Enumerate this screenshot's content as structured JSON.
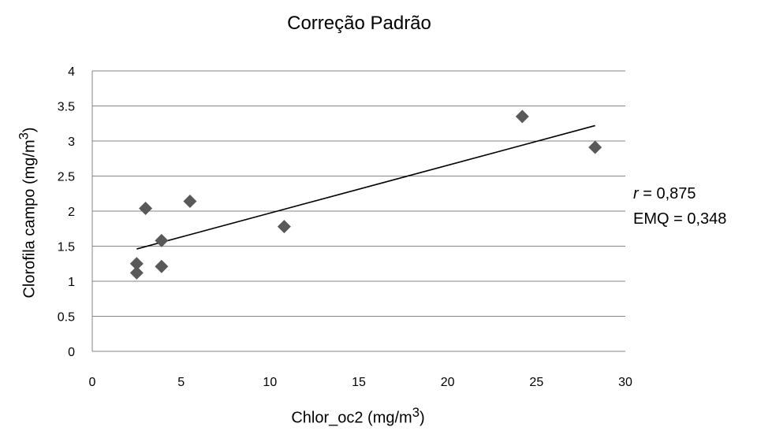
{
  "chart_data": {
    "type": "scatter",
    "title": "Correção Padrão",
    "xlabel": "Chlor_oc2 (mg/m",
    "xlabel_sup": "3",
    "xlabel_suffix": ")",
    "ylabel": "Clorofila campo (mg/m",
    "ylabel_sup": "3",
    "ylabel_suffix": ")",
    "xlim": [
      0,
      30
    ],
    "ylim": [
      0,
      4
    ],
    "x_ticks": [
      "0",
      "5",
      "10",
      "15",
      "20",
      "25",
      "30"
    ],
    "y_ticks": [
      "0",
      "0.5",
      "1",
      "1.5",
      "2",
      "2.5",
      "3",
      "3.5",
      "4"
    ],
    "grid": true,
    "marker": "diamond",
    "marker_color": "#595959",
    "points": [
      {
        "x": 2.5,
        "y": 1.25
      },
      {
        "x": 2.5,
        "y": 1.12
      },
      {
        "x": 3.0,
        "y": 2.04
      },
      {
        "x": 3.9,
        "y": 1.58
      },
      {
        "x": 3.9,
        "y": 1.21
      },
      {
        "x": 5.5,
        "y": 2.14
      },
      {
        "x": 10.8,
        "y": 1.78
      },
      {
        "x": 24.2,
        "y": 3.35
      },
      {
        "x": 28.3,
        "y": 2.91
      }
    ],
    "trendline": {
      "x": [
        2.5,
        28.3
      ],
      "y": [
        1.46,
        3.22
      ]
    },
    "annotations": {
      "r_symbol": "r",
      "r_value": " = 0,875",
      "emq": "EMQ = 0,348"
    }
  }
}
